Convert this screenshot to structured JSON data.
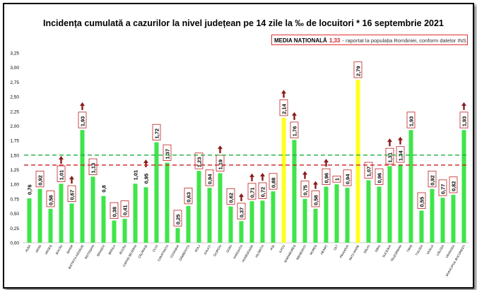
{
  "title": "Incidența cumulată a cazurilor la nivel județean pe 14 zile la ‰ de locuitori * 16 septembrie 2021",
  "national": {
    "label": "MEDIA NAȚIONALĂ",
    "value": "1,33",
    "description": "- raportat la populația României, conform datelor INS"
  },
  "colors": {
    "bar": "#3fe54a",
    "highlight": "#ffff22",
    "arrow": "#8b1a1a",
    "national_line": "#cc2222",
    "threshold_line": "#1fae3c"
  },
  "chart_data": {
    "type": "bar",
    "categories": [
      "ALBA",
      "ARAD",
      "ARGEȘ",
      "BACĂU",
      "BIHOR",
      "BISTRIȚA-NĂSĂUD",
      "BOTOȘANI",
      "BRAȘOV",
      "BRĂILA",
      "BUZĂU",
      "CARAȘ-SEVERIN",
      "CĂLĂRAȘI",
      "CLUJ",
      "CONSTANȚA",
      "COVASNA",
      "DÂMBOVIȚA",
      "DOLJ",
      "GALAȚI",
      "GIURGIU",
      "GORJ",
      "HARGHITA",
      "HUNEDOARA",
      "IALOMIȚA",
      "IAȘI",
      "ILFOV",
      "MARAMUREȘ",
      "MEHEDINȚI",
      "MUREȘ",
      "NEAMȚ",
      "OLT",
      "PRAHOVA",
      "SATU MARE",
      "SĂLAJ",
      "SIBIU",
      "SUCEAVA",
      "TELEORMAN",
      "TIMIȘ",
      "TULCEA",
      "VASLUI",
      "VÂLCEA",
      "VRANCEA",
      "MUNICIPIUL BUCUREȘTI"
    ],
    "values": [
      0.76,
      0.92,
      0.58,
      1.01,
      0.67,
      1.93,
      1.13,
      0.8,
      0.38,
      0.41,
      1.01,
      0.95,
      1.72,
      1.37,
      0.25,
      0.63,
      1.23,
      0.94,
      1.19,
      0.62,
      0.37,
      0.71,
      0.72,
      0.88,
      2.14,
      1.76,
      0.75,
      0.58,
      0.96,
      1,
      0.94,
      2.79,
      1.07,
      0.96,
      1.31,
      1.34,
      1.93,
      0.55,
      0.92,
      0.77,
      0.82,
      1.93
    ],
    "labels": [
      "0,76",
      "0,92",
      "0,58",
      "1,01",
      "0,67",
      "1,93",
      "1,13",
      "0,8",
      "0,38",
      "0,41",
      "1,01",
      "0,95",
      "1,72",
      "1,37",
      "0,25",
      "0,63",
      "1,23",
      "0,94",
      "1,19",
      "0,62",
      "0,37",
      "0,71",
      "0,72",
      "0,88",
      "2,14",
      "1,76",
      "0,75",
      "0,58",
      "0,96",
      "1",
      "0,94",
      "2,79",
      "1,07",
      "0,96",
      "1,31",
      "1,34",
      "1,93",
      "0,55",
      "0,92",
      "0,77",
      "0,82",
      "1,93"
    ],
    "boxed_labels": [
      1,
      2,
      3,
      4,
      5,
      6,
      8,
      9,
      12,
      13,
      14,
      15,
      16,
      17,
      18,
      19,
      20,
      21,
      22,
      23,
      24,
      25,
      26,
      27,
      28,
      29,
      30,
      31,
      32,
      33,
      34,
      35,
      36,
      37,
      38,
      39,
      40,
      41
    ],
    "highlighted": [
      24,
      31
    ],
    "up_arrows": [
      3,
      4,
      5,
      11,
      18,
      20,
      21,
      22,
      24,
      25,
      26,
      27,
      28,
      34,
      35,
      41
    ],
    "reference_lines": [
      {
        "value": 1.5,
        "kind": "threshold"
      },
      {
        "value": 1.33,
        "kind": "national"
      }
    ],
    "yticks": [
      "0,00",
      "0,25",
      "0,50",
      "0,75",
      "1,00",
      "1,25",
      "1,50",
      "1,75",
      "2,00",
      "2,25",
      "2,50",
      "2,75",
      "3,00",
      "3,25"
    ],
    "ylim": [
      0,
      3.25
    ]
  }
}
